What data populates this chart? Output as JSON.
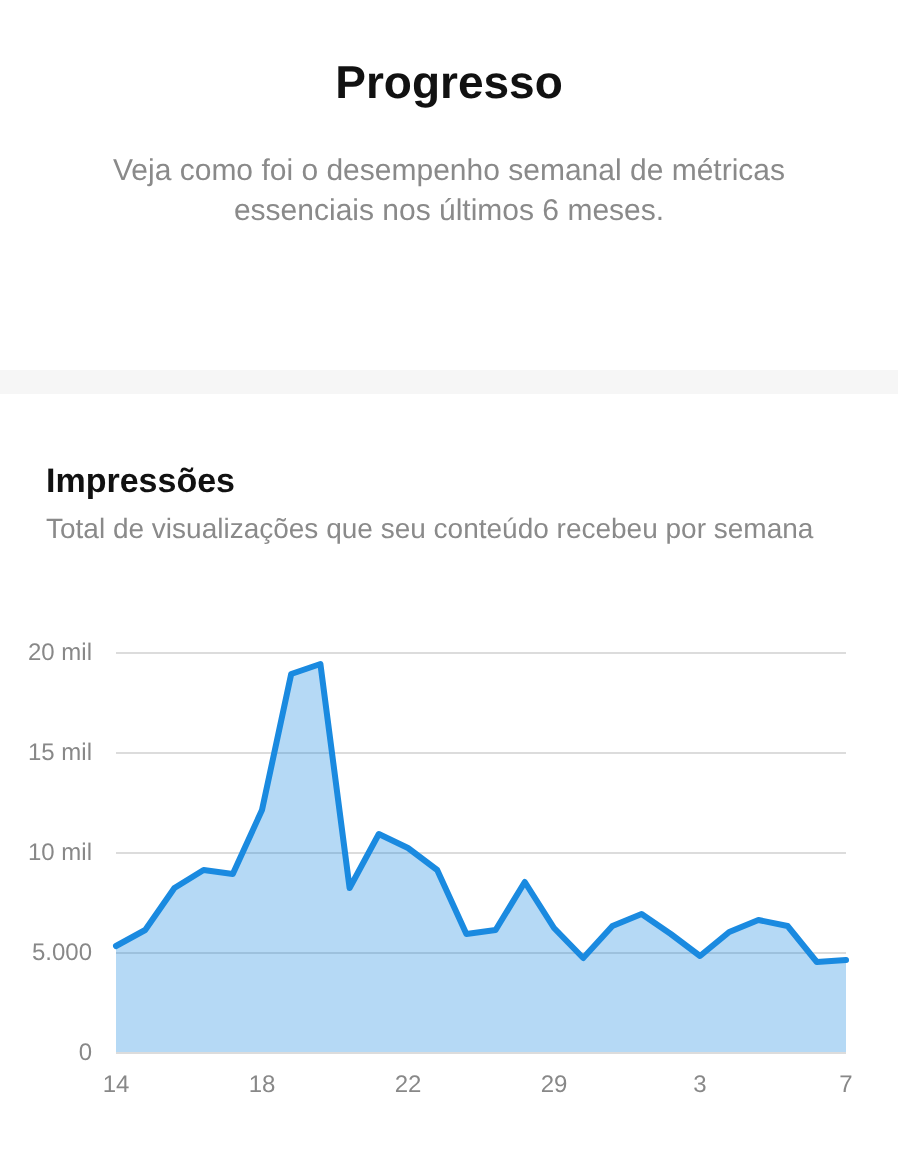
{
  "chart_data": {
    "type": "area",
    "title": "Impressões",
    "subtitle": "Total de visualizações que seu conteúdo recebeu por semana",
    "annotations": [
      "Progresso",
      "Veja como foi o desempenho semanal de métricas essenciais nos últimos 6 meses."
    ],
    "categories": [
      "14",
      null,
      null,
      null,
      null,
      "18",
      null,
      null,
      null,
      null,
      "22",
      null,
      null,
      null,
      null,
      "29",
      null,
      null,
      null,
      null,
      "3",
      null,
      null,
      null,
      null,
      "7"
    ],
    "series": [
      {
        "color": "#1a8ae0",
        "values": [
          5.3,
          6.1,
          8.2,
          9.1,
          8.9,
          12.1,
          18.9,
          19.4,
          8.2,
          10.9,
          10.2,
          9.1,
          5.9,
          6.1,
          8.5,
          6.2,
          4.7,
          6.3,
          6.9,
          5.9,
          4.8,
          6.0,
          6.6,
          6.3,
          4.5,
          4.6
        ]
      }
    ],
    "ylim": [
      0,
      20
    ],
    "yticks": [
      0,
      {
        "value": 5,
        "label": "5.000"
      },
      {
        "value": 10,
        "label": "10 mil"
      },
      {
        "value": 15,
        "label": "15 mil"
      },
      {
        "value": 20,
        "label": "20 mil"
      }
    ],
    "grid": "y",
    "marker": "none",
    "line_style": "solid"
  }
}
